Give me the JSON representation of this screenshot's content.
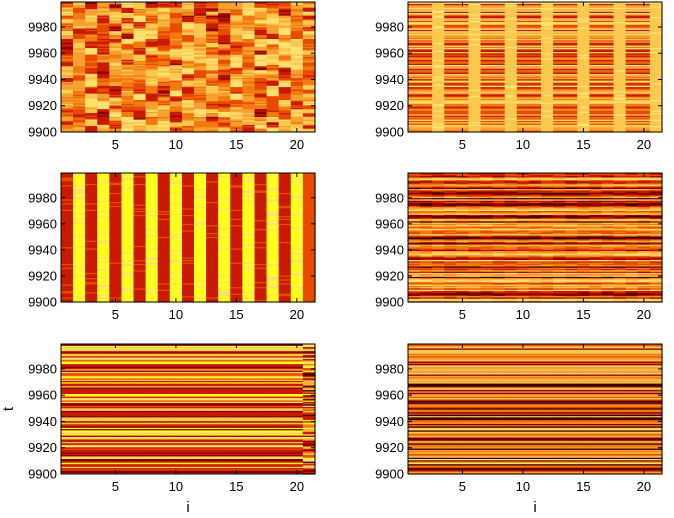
{
  "chart_data": [
    {
      "type": "heatmap",
      "panel": "top-left",
      "pattern": "blocky",
      "xlabel": "",
      "ylabel": "",
      "xlim": [
        0.5,
        21.5
      ],
      "ylim": [
        9900,
        9999
      ],
      "xticks": [
        5,
        10,
        15,
        20
      ],
      "yticks": [
        9900,
        9920,
        9940,
        9960,
        9980
      ],
      "seed": 11
    },
    {
      "type": "heatmap",
      "panel": "top-right",
      "pattern": "striped-columns",
      "xlabel": "",
      "ylabel": "",
      "xlim": [
        0.5,
        21.5
      ],
      "ylim": [
        9900,
        9999
      ],
      "xticks": [
        5,
        10,
        15,
        20
      ],
      "yticks": [
        9900,
        9920,
        9940,
        9960,
        9980
      ],
      "seed": 23
    },
    {
      "type": "heatmap",
      "panel": "middle-left",
      "pattern": "alternating-columns",
      "xlabel": "",
      "ylabel": "",
      "xlim": [
        0.5,
        21.5
      ],
      "ylim": [
        9900,
        9999
      ],
      "xticks": [
        5,
        10,
        15,
        20
      ],
      "yticks": [
        9900,
        9920,
        9940,
        9960,
        9980
      ],
      "seed": 37
    },
    {
      "type": "heatmap",
      "panel": "middle-right",
      "pattern": "noisy-rows",
      "xlabel": "",
      "ylabel": "",
      "xlim": [
        0.5,
        21.5
      ],
      "ylim": [
        9900,
        9999
      ],
      "xticks": [
        5,
        10,
        15,
        20
      ],
      "yticks": [
        9900,
        9920,
        9940,
        9960,
        9980
      ],
      "seed": 41
    },
    {
      "type": "heatmap",
      "panel": "bottom-left",
      "pattern": "row-bands-last-column",
      "xlabel": "i",
      "ylabel": "t",
      "xlim": [
        0.5,
        21.5
      ],
      "ylim": [
        9900,
        9999
      ],
      "xticks": [
        5,
        10,
        15,
        20
      ],
      "yticks": [
        9900,
        9920,
        9940,
        9960,
        9980
      ],
      "seed": 53
    },
    {
      "type": "heatmap",
      "panel": "bottom-right",
      "pattern": "row-bands",
      "xlabel": "i",
      "ylabel": "",
      "xlim": [
        0.5,
        21.5
      ],
      "ylim": [
        9900,
        9999
      ],
      "xticks": [
        5,
        10,
        15,
        20
      ],
      "yticks": [
        9900,
        9920,
        9940,
        9960,
        9980
      ],
      "seed": 67
    }
  ],
  "colormap": "hot",
  "colors": [
    "#3a0000",
    "#8a0000",
    "#c81a00",
    "#e84a00",
    "#f07a10",
    "#f5a030",
    "#fbc850",
    "#ffe070",
    "#ffff20"
  ]
}
